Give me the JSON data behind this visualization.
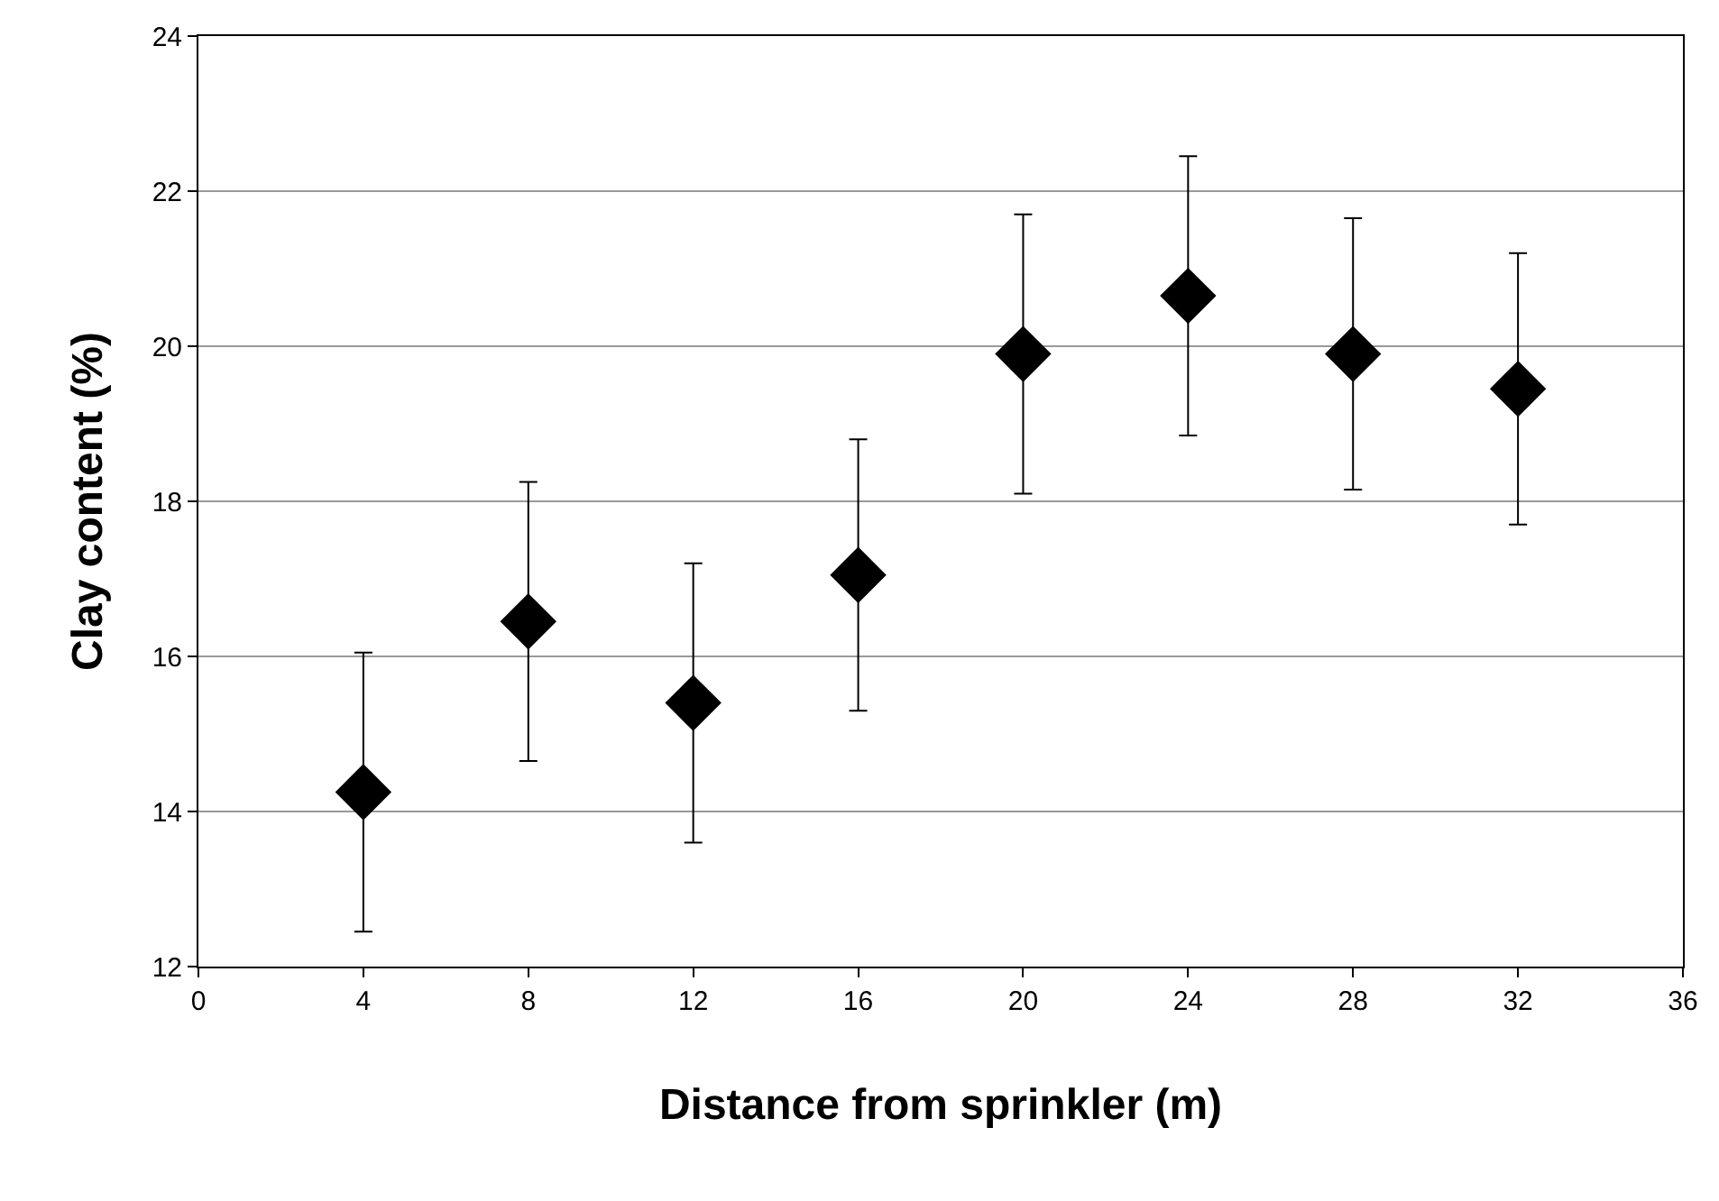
{
  "chart_data": {
    "type": "scatter",
    "xlabel": "Distance from sprinkler (m)",
    "ylabel": "Clay content (%)",
    "x": [
      4,
      8,
      12,
      16,
      20,
      24,
      28,
      32
    ],
    "series": [
      {
        "color": "#000000",
        "values": [
          14.25,
          16.45,
          15.4,
          17.05,
          19.9,
          20.65,
          19.9,
          19.45
        ],
        "errors": [
          1.8,
          1.8,
          1.8,
          1.75,
          1.8,
          1.8,
          1.75,
          1.75
        ]
      }
    ],
    "xlim": [
      0,
      36
    ],
    "xticks": [
      0,
      4,
      8,
      12,
      16,
      20,
      24,
      28,
      32,
      36
    ],
    "ylim": [
      12,
      24
    ],
    "yticks": [
      12,
      14,
      16,
      18,
      20,
      22,
      24
    ],
    "grid": "y",
    "marker": "diamond",
    "legend": false
  }
}
